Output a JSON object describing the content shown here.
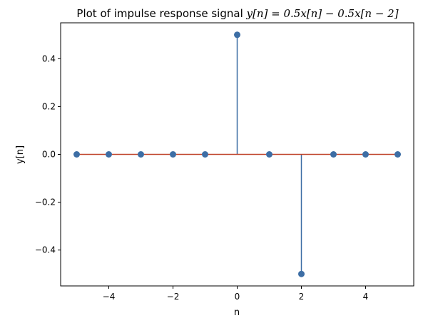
{
  "chart_data": {
    "type": "scatter",
    "subtype": "stem",
    "title_prefix": "Plot of impulse response signal ",
    "title_equation": "y[n] = 0.5x[n] − 0.5x[n − 2]",
    "xlabel": "n",
    "ylabel": "y[n]",
    "x": [
      -5,
      -4,
      -3,
      -2,
      -1,
      0,
      1,
      2,
      3,
      4,
      5
    ],
    "y": [
      0,
      0,
      0,
      0,
      0,
      0.5,
      0,
      -0.5,
      0,
      0,
      0
    ],
    "xlim": [
      -5.5,
      5.5
    ],
    "ylim": [
      -0.55,
      0.55
    ],
    "xticks": [
      -4,
      -2,
      0,
      2,
      4
    ],
    "xtick_labels": [
      "−4",
      "−2",
      "0",
      "2",
      "4"
    ],
    "yticks": [
      -0.4,
      -0.2,
      0.0,
      0.2,
      0.4
    ],
    "ytick_labels": [
      "−0.4",
      "−0.2",
      "0.0",
      "0.2",
      "0.4"
    ],
    "grid": false,
    "legend": "none",
    "colors": {
      "stem": "#3d6ea5",
      "marker": "#3d6ea5",
      "baseline": "#c0432b",
      "axes": "#000000"
    }
  }
}
